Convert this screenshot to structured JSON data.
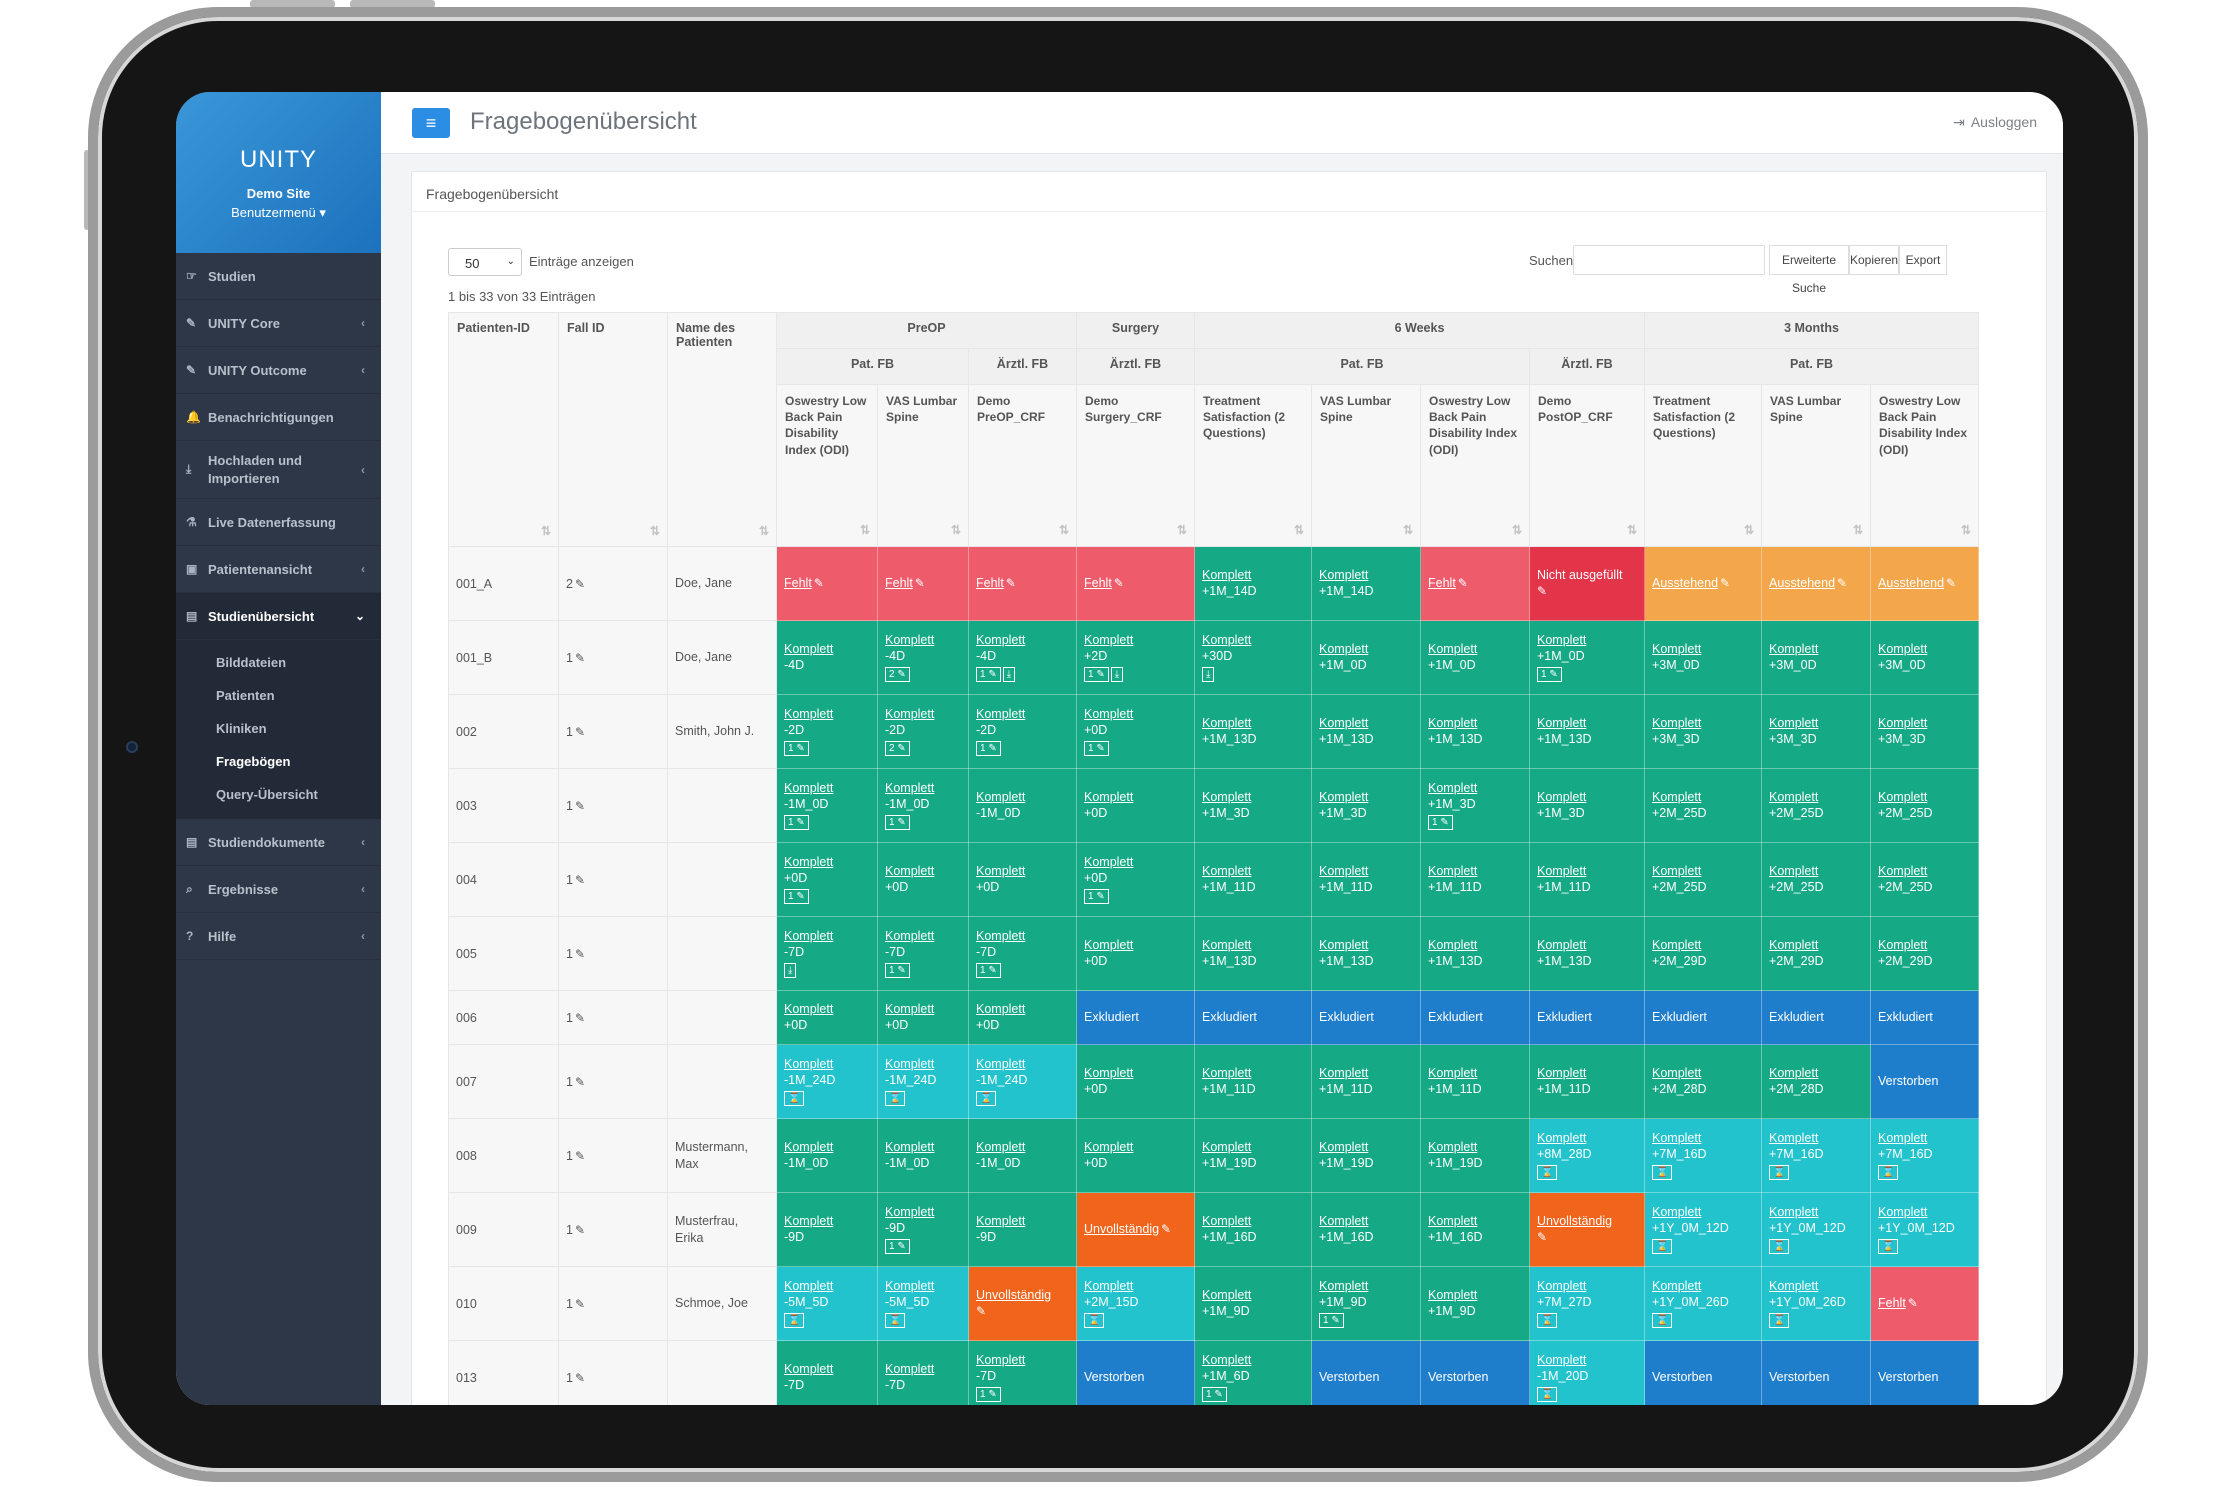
{
  "sidebar": {
    "brand": "UNITY",
    "site": "Demo Site",
    "user_menu": "Benutzermenü",
    "items": [
      {
        "label": "Studien",
        "icon": "hand-icon",
        "chevron": false
      },
      {
        "label": "UNITY Core",
        "icon": "pencil-icon",
        "chevron": true
      },
      {
        "label": "UNITY Outcome",
        "icon": "pencil-icon",
        "chevron": true
      },
      {
        "label": "Benachrichtigungen",
        "icon": "bell-icon",
        "chevron": false
      },
      {
        "label": "Hochladen und Importieren",
        "icon": "download-icon",
        "chevron": true
      },
      {
        "label": "Live Datenerfassung",
        "icon": "flask-icon",
        "chevron": false
      },
      {
        "label": "Patientenansicht",
        "icon": "briefcase-icon",
        "chevron": true
      },
      {
        "label": "Studienübersicht",
        "icon": "book-icon",
        "chevron": true
      },
      {
        "label": "Studiendokumente",
        "icon": "book-icon",
        "chevron": true
      },
      {
        "label": "Ergebnisse",
        "icon": "search-icon",
        "chevron": true
      },
      {
        "label": "Hilfe",
        "icon": "question-icon",
        "chevron": true
      }
    ],
    "subitems": [
      "Bilddateien",
      "Patienten",
      "Kliniken",
      "Fragebögen",
      "Query-Übersicht"
    ]
  },
  "topbar": {
    "title": "Fragebogenübersicht",
    "logout": "Ausloggen"
  },
  "panel": {
    "title": "Fragebogenübersicht",
    "page_size": "50",
    "entries_label": "Einträge anzeigen",
    "info": "1 bis 33 von 33 Einträgen",
    "search_label": "Suchen",
    "buttons": {
      "advanced": "Erweiterte Suche",
      "copy": "Kopieren",
      "export": "Export"
    }
  },
  "table": {
    "col_patient": "Patienten-ID",
    "col_case": "Fall ID",
    "col_name": "Name des Patienten",
    "groups": {
      "preop": "PreOP",
      "surgery": "Surgery",
      "w6": "6 Weeks",
      "m3": "3 Months"
    },
    "subgroups": {
      "pat": "Pat. FB",
      "arzt": "Ärztl. FB"
    },
    "questionnaires": [
      "Oswestry Low Back Pain Disability Index (ODI)",
      "VAS Lumbar Spine",
      "Demo PreOP_CRF",
      "Demo Surgery_CRF",
      "Treatment Satisfaction (2 Questions)",
      "VAS Lumbar Spine",
      "Oswestry Low Back Pain Disability Index (ODI)",
      "Demo PostOP_CRF",
      "Treatment Satisfaction (2 Questions)",
      "VAS Lumbar Spine",
      "Oswestry Low Back Pain Disability Index (ODI)"
    ],
    "rows": [
      {
        "id": "001_A",
        "case": "2",
        "name": "",
        "name2": "Doe, Jane",
        "cells": [
          [
            "r",
            "Fehlt",
            "",
            "e"
          ],
          [
            "r",
            "Fehlt",
            "",
            "e"
          ],
          [
            "r",
            "Fehlt",
            "",
            "e"
          ],
          [
            "r",
            "Fehlt",
            "",
            "e"
          ],
          [
            "g",
            "Komplett",
            "+1M_14D",
            ""
          ],
          [
            "g",
            "Komplett",
            "+1M_14D",
            ""
          ],
          [
            "r",
            "Fehlt",
            "",
            "e"
          ],
          [
            "rd",
            "Nicht ausgefüllt",
            "",
            "e2"
          ],
          [
            "o",
            "Ausstehend",
            "",
            "e"
          ],
          [
            "o",
            "Ausstehend",
            "",
            "e"
          ],
          [
            "o",
            "Ausstehend",
            "",
            "e"
          ]
        ]
      },
      {
        "id": "001_B",
        "case": "1",
        "name2": "Doe, Jane",
        "cells": [
          [
            "g",
            "Komplett",
            "-4D",
            ""
          ],
          [
            "g",
            "Komplett",
            "-4D",
            "2e"
          ],
          [
            "g",
            "Komplett",
            "-4D",
            "1ed"
          ],
          [
            "g",
            "Komplett",
            "+2D",
            "1ed"
          ],
          [
            "g",
            "Komplett",
            "+30D",
            "d"
          ],
          [
            "g",
            "Komplett",
            "+1M_0D",
            ""
          ],
          [
            "g",
            "Komplett",
            "+1M_0D",
            ""
          ],
          [
            "g",
            "Komplett",
            "+1M_0D",
            "1e"
          ],
          [
            "g",
            "Komplett",
            "+3M_0D",
            ""
          ],
          [
            "g",
            "Komplett",
            "+3M_0D",
            ""
          ],
          [
            "g",
            "Komplett",
            "+3M_0D",
            ""
          ]
        ]
      },
      {
        "id": "002",
        "case": "1",
        "name2": "Smith, John J.",
        "cells": [
          [
            "g",
            "Komplett",
            "-2D",
            "1e"
          ],
          [
            "g",
            "Komplett",
            "-2D",
            "2e"
          ],
          [
            "g",
            "Komplett",
            "-2D",
            "1e"
          ],
          [
            "g",
            "Komplett",
            "+0D",
            "1e"
          ],
          [
            "g",
            "Komplett",
            "+1M_13D",
            ""
          ],
          [
            "g",
            "Komplett",
            "+1M_13D",
            ""
          ],
          [
            "g",
            "Komplett",
            "+1M_13D",
            ""
          ],
          [
            "g",
            "Komplett",
            "+1M_13D",
            ""
          ],
          [
            "g",
            "Komplett",
            "+3M_3D",
            ""
          ],
          [
            "g",
            "Komplett",
            "+3M_3D",
            ""
          ],
          [
            "g",
            "Komplett",
            "+3M_3D",
            ""
          ]
        ]
      },
      {
        "id": "003",
        "case": "1",
        "name2": "",
        "cells": [
          [
            "g",
            "Komplett",
            "-1M_0D",
            "1e"
          ],
          [
            "g",
            "Komplett",
            "-1M_0D",
            "1e"
          ],
          [
            "g",
            "Komplett",
            "-1M_0D",
            ""
          ],
          [
            "g",
            "Komplett",
            "+0D",
            ""
          ],
          [
            "g",
            "Komplett",
            "+1M_3D",
            ""
          ],
          [
            "g",
            "Komplett",
            "+1M_3D",
            ""
          ],
          [
            "g",
            "Komplett",
            "+1M_3D",
            "1e"
          ],
          [
            "g",
            "Komplett",
            "+1M_3D",
            ""
          ],
          [
            "g",
            "Komplett",
            "+2M_25D",
            ""
          ],
          [
            "g",
            "Komplett",
            "+2M_25D",
            ""
          ],
          [
            "g",
            "Komplett",
            "+2M_25D",
            ""
          ]
        ]
      },
      {
        "id": "004",
        "case": "1",
        "name2": "",
        "cells": [
          [
            "g",
            "Komplett",
            "+0D",
            "1e"
          ],
          [
            "g",
            "Komplett",
            "+0D",
            ""
          ],
          [
            "g",
            "Komplett",
            "+0D",
            ""
          ],
          [
            "g",
            "Komplett",
            "+0D",
            "1e"
          ],
          [
            "g",
            "Komplett",
            "+1M_11D",
            ""
          ],
          [
            "g",
            "Komplett",
            "+1M_11D",
            ""
          ],
          [
            "g",
            "Komplett",
            "+1M_11D",
            ""
          ],
          [
            "g",
            "Komplett",
            "+1M_11D",
            ""
          ],
          [
            "g",
            "Komplett",
            "+2M_25D",
            ""
          ],
          [
            "g",
            "Komplett",
            "+2M_25D",
            ""
          ],
          [
            "g",
            "Komplett",
            "+2M_25D",
            ""
          ]
        ]
      },
      {
        "id": "005",
        "case": "1",
        "name2": "",
        "cells": [
          [
            "g",
            "Komplett",
            "-7D",
            "d"
          ],
          [
            "g",
            "Komplett",
            "-7D",
            "1e"
          ],
          [
            "g",
            "Komplett",
            "-7D",
            "1e"
          ],
          [
            "g",
            "Komplett",
            "+0D",
            ""
          ],
          [
            "g",
            "Komplett",
            "+1M_13D",
            ""
          ],
          [
            "g",
            "Komplett",
            "+1M_13D",
            ""
          ],
          [
            "g",
            "Komplett",
            "+1M_13D",
            ""
          ],
          [
            "g",
            "Komplett",
            "+1M_13D",
            ""
          ],
          [
            "g",
            "Komplett",
            "+2M_29D",
            ""
          ],
          [
            "g",
            "Komplett",
            "+2M_29D",
            ""
          ],
          [
            "g",
            "Komplett",
            "+2M_29D",
            ""
          ]
        ]
      },
      {
        "id": "006",
        "case": "1",
        "name2": "",
        "short": true,
        "cells": [
          [
            "g",
            "Komplett",
            "+0D",
            ""
          ],
          [
            "g",
            "Komplett",
            "+0D",
            ""
          ],
          [
            "g",
            "Komplett",
            "+0D",
            ""
          ],
          [
            "b",
            "Exkludiert",
            "",
            ""
          ],
          [
            "b",
            "Exkludiert",
            "",
            ""
          ],
          [
            "b",
            "Exkludiert",
            "",
            ""
          ],
          [
            "b",
            "Exkludiert",
            "",
            ""
          ],
          [
            "b",
            "Exkludiert",
            "",
            ""
          ],
          [
            "b",
            "Exkludiert",
            "",
            ""
          ],
          [
            "b",
            "Exkludiert",
            "",
            ""
          ],
          [
            "b",
            "Exkludiert",
            "",
            ""
          ]
        ]
      },
      {
        "id": "007",
        "case": "1",
        "name2": "",
        "cells": [
          [
            "t",
            "Komplett",
            "-1M_24D",
            "h"
          ],
          [
            "t",
            "Komplett",
            "-1M_24D",
            "h"
          ],
          [
            "t",
            "Komplett",
            "-1M_24D",
            "h"
          ],
          [
            "g",
            "Komplett",
            "+0D",
            ""
          ],
          [
            "g",
            "Komplett",
            "+1M_11D",
            ""
          ],
          [
            "g",
            "Komplett",
            "+1M_11D",
            ""
          ],
          [
            "g",
            "Komplett",
            "+1M_11D",
            ""
          ],
          [
            "g",
            "Komplett",
            "+1M_11D",
            ""
          ],
          [
            "g",
            "Komplett",
            "+2M_28D",
            ""
          ],
          [
            "g",
            "Komplett",
            "+2M_28D",
            ""
          ],
          [
            "b",
            "Verstorben",
            "",
            ""
          ]
        ]
      },
      {
        "id": "008",
        "case": "1",
        "name2": "Mustermann, Max",
        "cells": [
          [
            "g",
            "Komplett",
            "-1M_0D",
            ""
          ],
          [
            "g",
            "Komplett",
            "-1M_0D",
            ""
          ],
          [
            "g",
            "Komplett",
            "-1M_0D",
            ""
          ],
          [
            "g",
            "Komplett",
            "+0D",
            ""
          ],
          [
            "g",
            "Komplett",
            "+1M_19D",
            ""
          ],
          [
            "g",
            "Komplett",
            "+1M_19D",
            ""
          ],
          [
            "g",
            "Komplett",
            "+1M_19D",
            ""
          ],
          [
            "t",
            "Komplett",
            "+8M_28D",
            "h"
          ],
          [
            "t",
            "Komplett",
            "+7M_16D",
            "h"
          ],
          [
            "t",
            "Komplett",
            "+7M_16D",
            "h"
          ],
          [
            "t",
            "Komplett",
            "+7M_16D",
            "h"
          ]
        ]
      },
      {
        "id": "009",
        "case": "1",
        "name2": "Musterfrau, Erika",
        "cells": [
          [
            "g",
            "Komplett",
            "-9D",
            ""
          ],
          [
            "g",
            "Komplett",
            "-9D",
            "1e"
          ],
          [
            "g",
            "Komplett",
            "-9D",
            ""
          ],
          [
            "or",
            "Unvollständig",
            "",
            "e"
          ],
          [
            "g",
            "Komplett",
            "+1M_16D",
            ""
          ],
          [
            "g",
            "Komplett",
            "+1M_16D",
            ""
          ],
          [
            "g",
            "Komplett",
            "+1M_16D",
            ""
          ],
          [
            "or",
            "Unvollständig",
            "",
            "e2"
          ],
          [
            "t",
            "Komplett",
            "+1Y_0M_12D",
            "h"
          ],
          [
            "t",
            "Komplett",
            "+1Y_0M_12D",
            "h"
          ],
          [
            "t",
            "Komplett",
            "+1Y_0M_12D",
            "h"
          ]
        ]
      },
      {
        "id": "010",
        "case": "1",
        "name2": "Schmoe, Joe",
        "cells": [
          [
            "t",
            "Komplett",
            "-5M_5D",
            "h"
          ],
          [
            "t",
            "Komplett",
            "-5M_5D",
            "h"
          ],
          [
            "or",
            "Unvollständig",
            "",
            "e2"
          ],
          [
            "t",
            "Komplett",
            "+2M_15D",
            "h"
          ],
          [
            "g",
            "Komplett",
            "+1M_9D",
            ""
          ],
          [
            "g",
            "Komplett",
            "+1M_9D",
            "1e"
          ],
          [
            "g",
            "Komplett",
            "+1M_9D",
            ""
          ],
          [
            "t",
            "Komplett",
            "+7M_27D",
            "h"
          ],
          [
            "t",
            "Komplett",
            "+1Y_0M_26D",
            "h"
          ],
          [
            "t",
            "Komplett",
            "+1Y_0M_26D",
            "h"
          ],
          [
            "r",
            "Fehlt",
            "",
            "e"
          ]
        ]
      },
      {
        "id": "013",
        "case": "1",
        "name2": "",
        "cells": [
          [
            "g",
            "Komplett",
            "-7D",
            ""
          ],
          [
            "g",
            "Komplett",
            "-7D",
            ""
          ],
          [
            "g",
            "Komplett",
            "-7D",
            "1e"
          ],
          [
            "b",
            "Verstorben",
            "",
            ""
          ],
          [
            "g",
            "Komplett",
            "+1M_6D",
            "1e"
          ],
          [
            "b",
            "Verstorben",
            "",
            ""
          ],
          [
            "b",
            "Verstorben",
            "",
            ""
          ],
          [
            "t",
            "Komplett",
            "-1M_20D",
            "h"
          ],
          [
            "b",
            "Verstorben",
            "",
            ""
          ],
          [
            "b",
            "Verstorben",
            "",
            ""
          ],
          [
            "b",
            "Verstorben",
            "",
            ""
          ]
        ]
      }
    ]
  }
}
